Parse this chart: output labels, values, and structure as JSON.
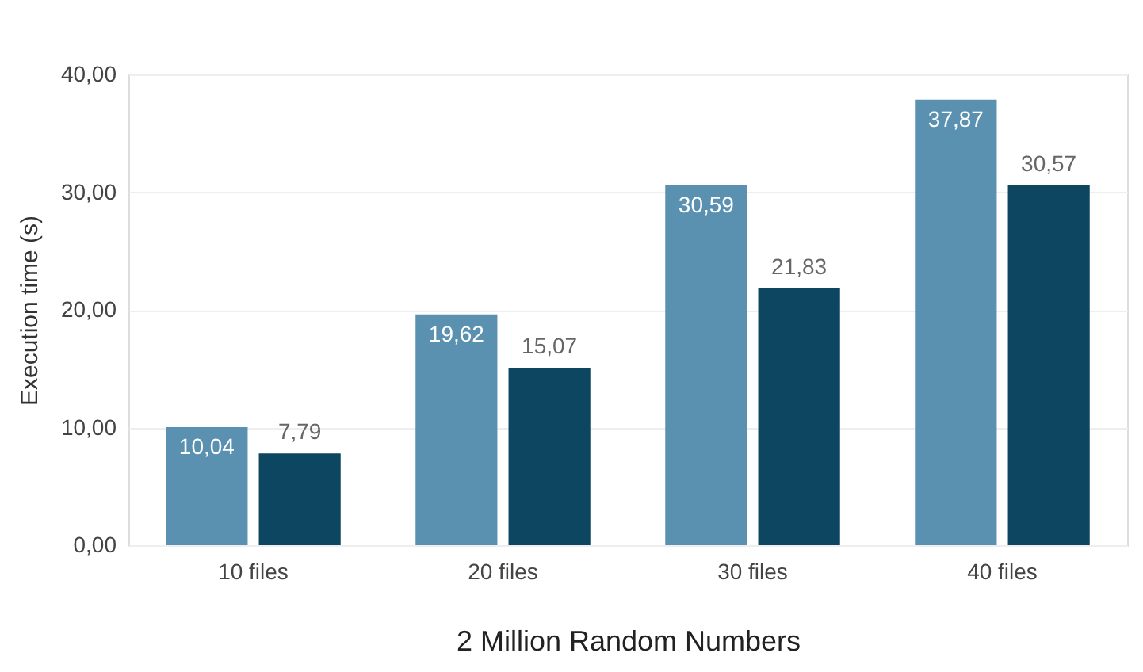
{
  "chart_data": {
    "type": "bar",
    "xlabel": "2 Million Random Numbers",
    "ylabel": "Execution time (s)",
    "categories": [
      "10 files",
      "20 files",
      "30 files",
      "40 files"
    ],
    "series": [
      {
        "color": "#5b91b0",
        "values": [
          10.04,
          19.62,
          30.59,
          37.87
        ],
        "value_labels": [
          "10,04",
          "19,62",
          "30,59",
          "37,87"
        ]
      },
      {
        "color": "#0d4660",
        "values": [
          7.79,
          15.07,
          21.83,
          30.57
        ],
        "value_labels": [
          "7,79",
          "15,07",
          "21,83",
          "30,57"
        ]
      }
    ],
    "ylim": [
      0,
      40
    ],
    "yticks": [
      {
        "value": 0,
        "label": "0,00"
      },
      {
        "value": 10,
        "label": "10,00"
      },
      {
        "value": 20,
        "label": "20,00"
      },
      {
        "value": 30,
        "label": "30,00"
      },
      {
        "value": 40,
        "label": "40,00"
      }
    ],
    "grid": "y",
    "legend": false
  }
}
